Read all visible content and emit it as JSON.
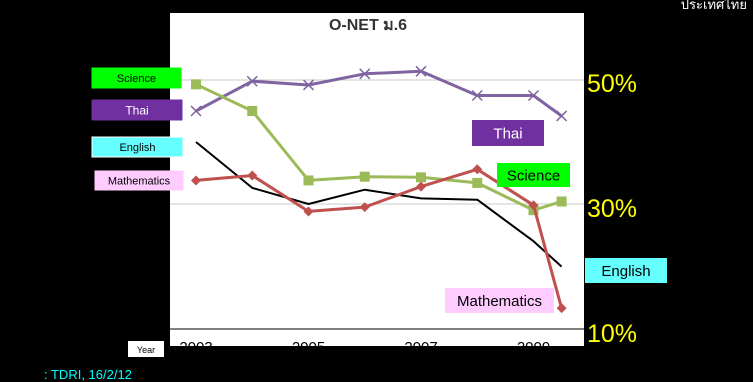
{
  "page": {
    "top_note": "ประเทศไทย",
    "source": ": TDRI, 16/2/12"
  },
  "chart_data": {
    "type": "line",
    "title": "O-NET ม.6",
    "xlabel": "Year",
    "ylabel": "",
    "x": [
      2003,
      2004,
      2005,
      2006,
      2007,
      2008,
      2009,
      2009.5
    ],
    "x_ticks": [
      "2003",
      "2005",
      "2007",
      "2009"
    ],
    "y_ticks": [
      "50%",
      "30%",
      "10%"
    ],
    "ylim": [
      10,
      55
    ],
    "grid": "horizontal at 30% and 50%",
    "series": [
      {
        "name": "Thai",
        "values": [
          45.0,
          49.8,
          49.2,
          51.0,
          51.4,
          47.5,
          47.5,
          44.2
        ],
        "color": "#8064a2",
        "marker": "x"
      },
      {
        "name": "Science",
        "values": [
          49.3,
          45.0,
          33.8,
          34.4,
          34.3,
          33.4,
          29.0,
          30.4
        ],
        "color": "#9bbb59",
        "marker": "square"
      },
      {
        "name": "English",
        "values": [
          40.0,
          32.6,
          30.0,
          32.3,
          30.9,
          30.7,
          24.0,
          19.9
        ],
        "color": "#000000",
        "marker": "none"
      },
      {
        "name": "Mathematics",
        "values": [
          33.8,
          34.6,
          28.8,
          29.5,
          32.8,
          35.6,
          29.8,
          13.2
        ],
        "color": "#c0504d",
        "marker": "diamond"
      }
    ],
    "legend_left": [
      {
        "label": "Science",
        "bg": "#00ff00",
        "fg": "#000000",
        "border": "#00ff00"
      },
      {
        "label": "Thai",
        "bg": "#7030a0",
        "fg": "#ffffff",
        "border": "#7030a0"
      },
      {
        "label": "English",
        "bg": "#66ffff",
        "fg": "#000000",
        "border": "#ffffff"
      },
      {
        "label": "Mathematics",
        "bg": "#ffccff",
        "fg": "#000000",
        "border": "#ffccff"
      }
    ],
    "end_labels": [
      {
        "label": "Thai",
        "bg": "#7030a0",
        "fg": "#ffffff"
      },
      {
        "label": "Science",
        "bg": "#00ff00",
        "fg": "#000000"
      },
      {
        "label": "English",
        "bg": "#66ffff",
        "fg": "#000000"
      },
      {
        "label": "Mathematics",
        "bg": "#ffccff",
        "fg": "#000000"
      }
    ],
    "colors": {
      "plot_bg": "#ffffff",
      "frame": "#000000",
      "grid": "#c8c8c8",
      "y_tick_color": "#ffff00",
      "year_tag_bg": "#ffffff"
    }
  }
}
